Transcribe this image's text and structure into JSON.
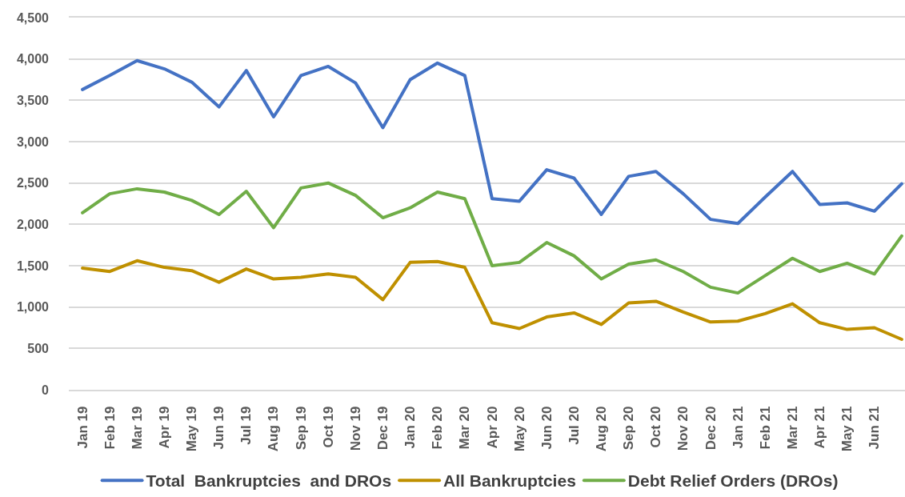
{
  "chart_data": {
    "type": "line",
    "categories": [
      "Jan 19",
      "Feb 19",
      "Mar 19",
      "Apr 19",
      "May 19",
      "Jun 19",
      "Jul 19",
      "Aug 19",
      "Sep 19",
      "Oct 19",
      "Nov 19",
      "Dec 19",
      "Jan 20",
      "Feb 20",
      "Mar 20",
      "Apr 20",
      "May 20",
      "Jun 20",
      "Jul 20",
      "Aug 20",
      "Sep 20",
      "Oct 20",
      "Nov 20",
      "Dec 20",
      "Jan 21",
      "Feb 21",
      "Mar 21",
      "Apr 21",
      "May 21",
      "Jun 21",
      null
    ],
    "series": [
      {
        "name": "Total  Bankruptcies  and DROs",
        "color": "#4472c4",
        "values": [
          3630,
          3800,
          3980,
          3880,
          3720,
          3420,
          3860,
          3300,
          3800,
          3910,
          3710,
          3170,
          3750,
          3950,
          3800,
          2310,
          2280,
          2660,
          2560,
          2120,
          2580,
          2640,
          2370,
          2060,
          2010,
          2330,
          2640,
          2240,
          2260,
          2160,
          2490
        ]
      },
      {
        "name": "All Bankruptcies",
        "color": "#bf9000",
        "values": [
          1470,
          1430,
          1560,
          1480,
          1440,
          1300,
          1460,
          1340,
          1360,
          1400,
          1360,
          1090,
          1540,
          1550,
          1480,
          810,
          740,
          880,
          930,
          790,
          1050,
          1070,
          940,
          820,
          830,
          920,
          1040,
          810,
          730,
          750,
          610
        ]
      },
      {
        "name": "Debt Relief Orders (DROs)",
        "color": "#70ad47",
        "values": [
          2140,
          2370,
          2430,
          2390,
          2290,
          2120,
          2400,
          1960,
          2440,
          2500,
          2350,
          2080,
          2200,
          2390,
          2310,
          1500,
          1540,
          1780,
          1620,
          1340,
          1520,
          1570,
          1430,
          1240,
          1170,
          1380,
          1590,
          1430,
          1530,
          1400,
          1860
        ]
      }
    ],
    "ylim": [
      0,
      4500
    ],
    "yticks": [
      0,
      500,
      {
        "value": 1000,
        "label": "1,000"
      },
      {
        "value": 1500,
        "label": "1,500"
      },
      {
        "value": 2000,
        "label": "2,000"
      },
      {
        "value": 2500,
        "label": "2,500"
      },
      {
        "value": 3000,
        "label": "3,000"
      },
      {
        "value": 3500,
        "label": "3,500"
      },
      {
        "value": 4000,
        "label": "4,000"
      },
      {
        "value": 4500,
        "label": "4,500"
      }
    ],
    "grid": "y",
    "legend": "bottom",
    "marker": "none",
    "line_style": "solid"
  }
}
